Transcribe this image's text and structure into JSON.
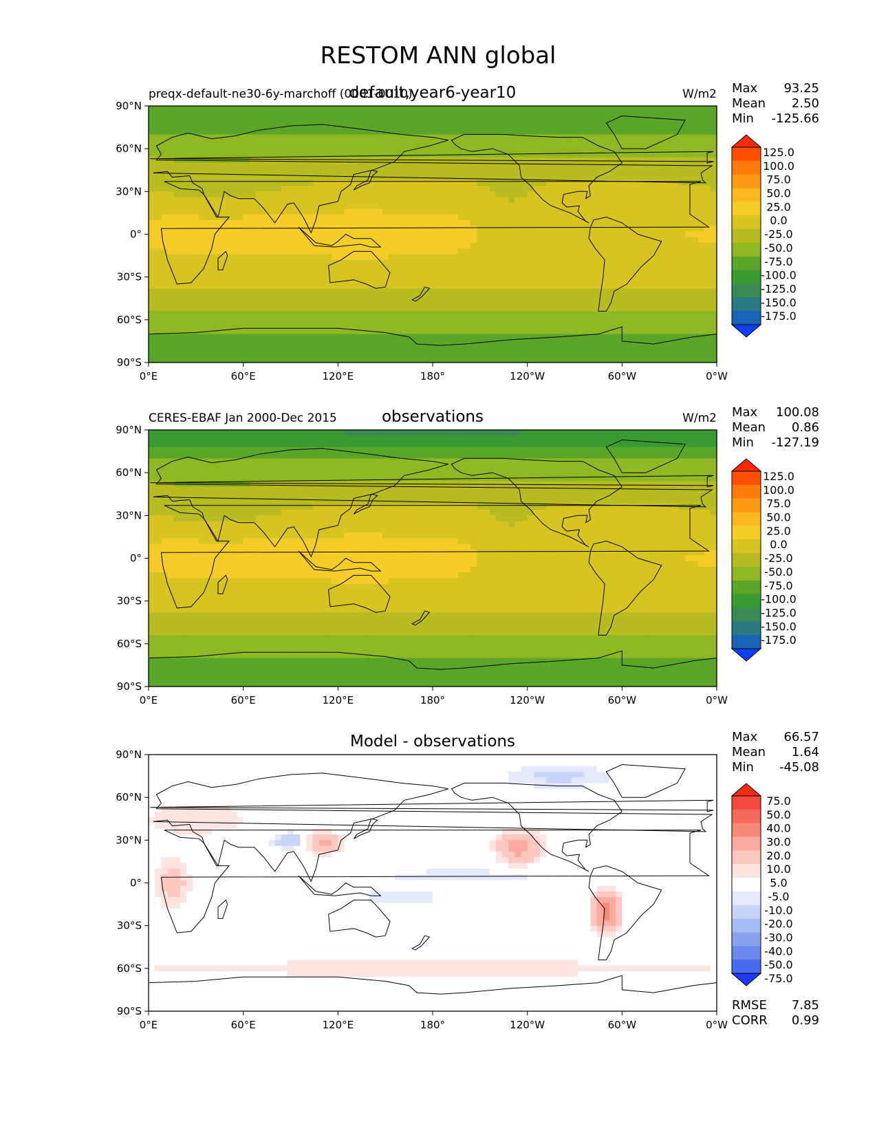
{
  "figure_title": "RESTOM ANN global",
  "chart_data": [
    {
      "type": "heatmap",
      "title": "default,year6-year10",
      "left_label": "preqx-default-ne30-6y-marchoff (0001-0010)",
      "units": "W/m2",
      "stats": [
        {
          "label": "Max",
          "value": "93.25"
        },
        {
          "label": "Mean",
          "value": "2.50"
        },
        {
          "label": "Min",
          "value": "-125.66"
        }
      ],
      "colorbar": {
        "levels": [
          "125.0",
          "100.0",
          "75.0",
          "50.0",
          "25.0",
          "0.0",
          "-25.0",
          "-50.0",
          "-75.0",
          "-100.0",
          "-125.0",
          "-150.0",
          "-175.0"
        ],
        "colors": [
          "#ff2a00",
          "#ff5000",
          "#ff7a0a",
          "#fd9a14",
          "#fdb820",
          "#f6cc28",
          "#d8c420",
          "#b9bc20",
          "#8fb822",
          "#5aa628",
          "#3a9a32",
          "#3a8a55",
          "#2a7a85",
          "#1a64b8",
          "#0a40ff"
        ]
      },
      "xlim": [
        0,
        360
      ],
      "ylim": [
        -90,
        90
      ],
      "x_ticks": [
        "0°E",
        "60°E",
        "120°E",
        "180°",
        "120°W",
        "60°W",
        "0°W"
      ],
      "y_ticks": [
        "90°N",
        "60°N",
        "30°N",
        "0°",
        "30°S",
        "60°S",
        "90°S"
      ],
      "field": "model"
    },
    {
      "type": "heatmap",
      "title": "observations",
      "left_label": "CERES-EBAF Jan 2000-Dec 2015",
      "units": "W/m2",
      "stats": [
        {
          "label": "Max",
          "value": "100.08"
        },
        {
          "label": "Mean",
          "value": "0.86"
        },
        {
          "label": "Min",
          "value": "-127.19"
        }
      ],
      "colorbar": {
        "levels": [
          "125.0",
          "100.0",
          "75.0",
          "50.0",
          "25.0",
          "0.0",
          "-25.0",
          "-50.0",
          "-75.0",
          "-100.0",
          "-125.0",
          "-150.0",
          "-175.0"
        ],
        "colors": [
          "#ff2a00",
          "#ff5000",
          "#ff7a0a",
          "#fd9a14",
          "#fdb820",
          "#f6cc28",
          "#d8c420",
          "#b9bc20",
          "#8fb822",
          "#5aa628",
          "#3a9a32",
          "#3a8a55",
          "#2a7a85",
          "#1a64b8",
          "#0a40ff"
        ]
      },
      "xlim": [
        0,
        360
      ],
      "ylim": [
        -90,
        90
      ],
      "x_ticks": [
        "0°E",
        "60°E",
        "120°E",
        "180°",
        "120°W",
        "60°W",
        "0°W"
      ],
      "y_ticks": [
        "90°N",
        "60°N",
        "30°N",
        "0°",
        "30°S",
        "60°S",
        "90°S"
      ],
      "field": "obs"
    },
    {
      "type": "heatmap",
      "title": "Model - observations",
      "left_label": "",
      "units": "",
      "stats": [
        {
          "label": "Max",
          "value": "66.57"
        },
        {
          "label": "Mean",
          "value": "1.64"
        },
        {
          "label": "Min",
          "value": "-45.08"
        }
      ],
      "bottom_stats": [
        {
          "label": "RMSE",
          "value": "7.85"
        },
        {
          "label": "CORR",
          "value": "0.99"
        }
      ],
      "colorbar": {
        "levels": [
          "75.0",
          "50.0",
          "40.0",
          "30.0",
          "20.0",
          "10.0",
          "5.0",
          "-5.0",
          "-10.0",
          "-20.0",
          "-30.0",
          "-40.0",
          "-50.0",
          "-75.0"
        ],
        "colors": [
          "#ff2a10",
          "#f24a40",
          "#f46a5a",
          "#f88a7a",
          "#fbaaa0",
          "#fcc8c0",
          "#fde4e0",
          "#ffffff",
          "#e4eafc",
          "#c8d4f8",
          "#a8bcf4",
          "#88a2f0",
          "#6a88ee",
          "#4a6af0",
          "#1a3cff"
        ]
      },
      "xlim": [
        0,
        360
      ],
      "ylim": [
        -90,
        90
      ],
      "x_ticks": [
        "0°E",
        "60°E",
        "120°E",
        "180°",
        "120°W",
        "60°W",
        "0°W"
      ],
      "y_ticks": [
        "90°N",
        "60°N",
        "30°N",
        "0°",
        "30°S",
        "60°S",
        "90°S"
      ],
      "field": "diff"
    }
  ]
}
